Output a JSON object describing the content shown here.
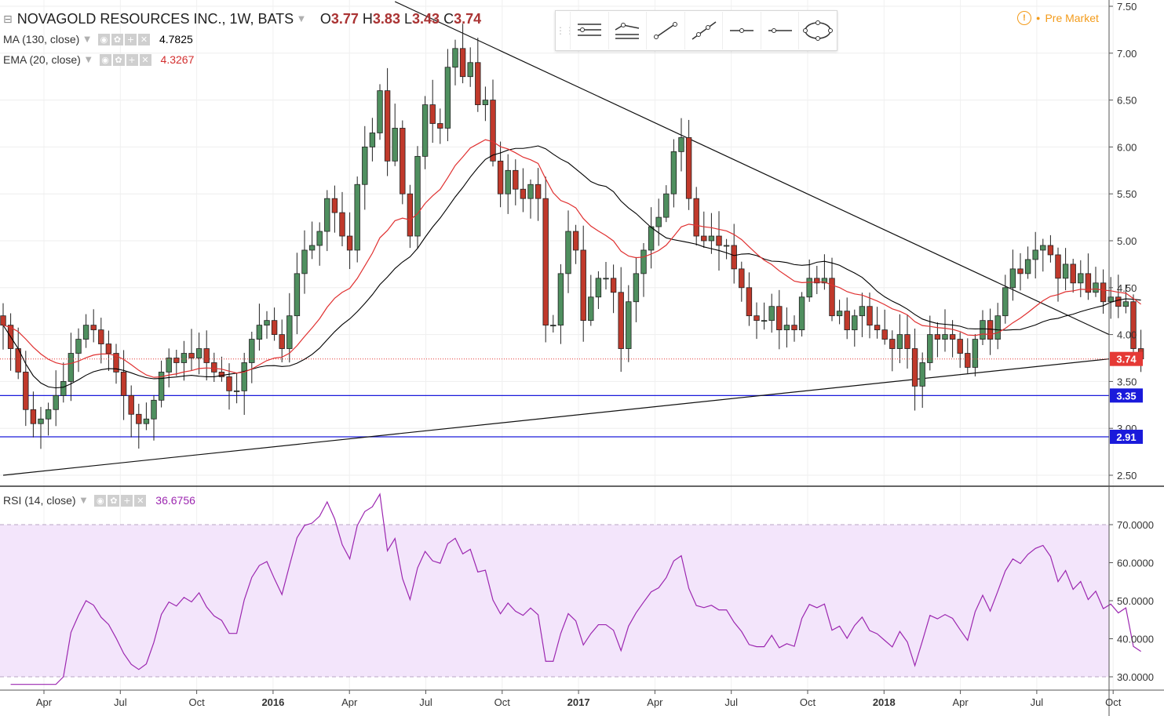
{
  "header": {
    "symbol_title": "NOVAGOLD RESOURCES INC., 1W, BATS",
    "open_label": "O",
    "open": "3.77",
    "high_label": "H",
    "high": "3.83",
    "low_label": "L",
    "low": "3.43",
    "close_label": "C",
    "close": "3.74",
    "premarket": "Pre Market"
  },
  "indicators": {
    "ma": {
      "label": "MA (130, close)",
      "value": "4.7825",
      "color": "#000000"
    },
    "ema": {
      "label": "EMA (20, close)",
      "value": "4.3267",
      "color": "#e03030"
    },
    "rsi": {
      "label": "RSI (14, close)",
      "value": "36.6756",
      "color": "#9c27b0"
    }
  },
  "colors": {
    "up": "#4f8f5f",
    "down": "#c0392b",
    "hline": "#1a1adb",
    "rsi_band": "#f3e5fb",
    "price_tag": "#e53935"
  },
  "chart_data": [
    {
      "type": "candlestick",
      "title": "NOVAGOLD RESOURCES INC., 1W, BATS",
      "x_ticks": [
        "Apr",
        "Jul",
        "Oct",
        "2016",
        "Apr",
        "Jul",
        "Oct",
        "2017",
        "Apr",
        "Jul",
        "Oct",
        "2018",
        "Apr",
        "Jul",
        "Oct"
      ],
      "y_ticks": [
        "7.50",
        "7.00",
        "6.50",
        "6.00",
        "5.50",
        "5.00",
        "4.50",
        "4.00",
        "3.50",
        "3.00",
        "2.50"
      ],
      "ylim": [
        2.5,
        7.5
      ],
      "price_tags": [
        "3.74",
        "3.35",
        "2.91"
      ],
      "horizontal_lines": [
        3.35,
        2.91
      ],
      "last_price": 3.74,
      "trend_lines": [
        {
          "from": [
            0,
            2.5
          ],
          "to": [
            150,
            3.74
          ]
        },
        {
          "from": [
            52,
            7.55
          ],
          "to": [
            150,
            4.0
          ]
        }
      ],
      "closes": [
        4.1,
        3.85,
        3.6,
        3.2,
        3.05,
        3.1,
        3.2,
        3.35,
        3.5,
        3.8,
        3.95,
        4.1,
        4.05,
        3.9,
        3.8,
        3.6,
        3.35,
        3.15,
        3.05,
        3.1,
        3.3,
        3.6,
        3.75,
        3.7,
        3.8,
        3.75,
        3.85,
        3.7,
        3.6,
        3.55,
        3.4,
        3.4,
        3.7,
        3.95,
        4.1,
        4.15,
        4.0,
        3.85,
        4.2,
        4.65,
        4.9,
        4.95,
        5.1,
        5.45,
        5.3,
        5.05,
        4.9,
        5.6,
        6.0,
        6.15,
        6.6,
        5.85,
        6.2,
        5.5,
        5.05,
        5.9,
        6.45,
        6.25,
        6.2,
        6.85,
        7.05,
        6.75,
        6.9,
        6.45,
        6.5,
        5.85,
        5.5,
        5.75,
        5.55,
        5.45,
        5.6,
        5.45,
        4.1,
        4.1,
        4.65,
        5.1,
        4.9,
        4.15,
        4.4,
        4.6,
        4.6,
        4.45,
        3.85,
        4.35,
        4.65,
        4.9,
        5.15,
        5.25,
        5.5,
        5.95,
        6.1,
        5.45,
        5.05,
        5.0,
        5.05,
        4.95,
        4.95,
        4.7,
        4.5,
        4.2,
        4.15,
        4.15,
        4.3,
        4.05,
        4.1,
        4.05,
        4.4,
        4.6,
        4.55,
        4.6,
        4.2,
        4.25,
        4.05,
        4.2,
        4.3,
        4.1,
        4.05,
        3.95,
        3.85,
        4.0,
        3.85,
        3.45,
        3.7,
        4.0,
        3.95,
        4.0,
        3.95,
        3.8,
        3.65,
        3.95,
        4.15,
        3.95,
        4.2,
        4.5,
        4.7,
        4.65,
        4.8,
        4.9,
        4.95,
        4.85,
        4.6,
        4.75,
        4.55,
        4.65,
        4.45,
        4.55,
        4.35,
        4.4,
        4.3,
        4.35,
        3.85,
        3.74
      ]
    },
    {
      "type": "line",
      "title": "RSI (14, close)",
      "y_ticks": [
        "70.0000",
        "60.0000",
        "50.0000",
        "40.0000",
        "30.0000"
      ],
      "ylim": [
        28,
        80
      ],
      "band": [
        30,
        70
      ],
      "last_value": 36.6756
    }
  ]
}
